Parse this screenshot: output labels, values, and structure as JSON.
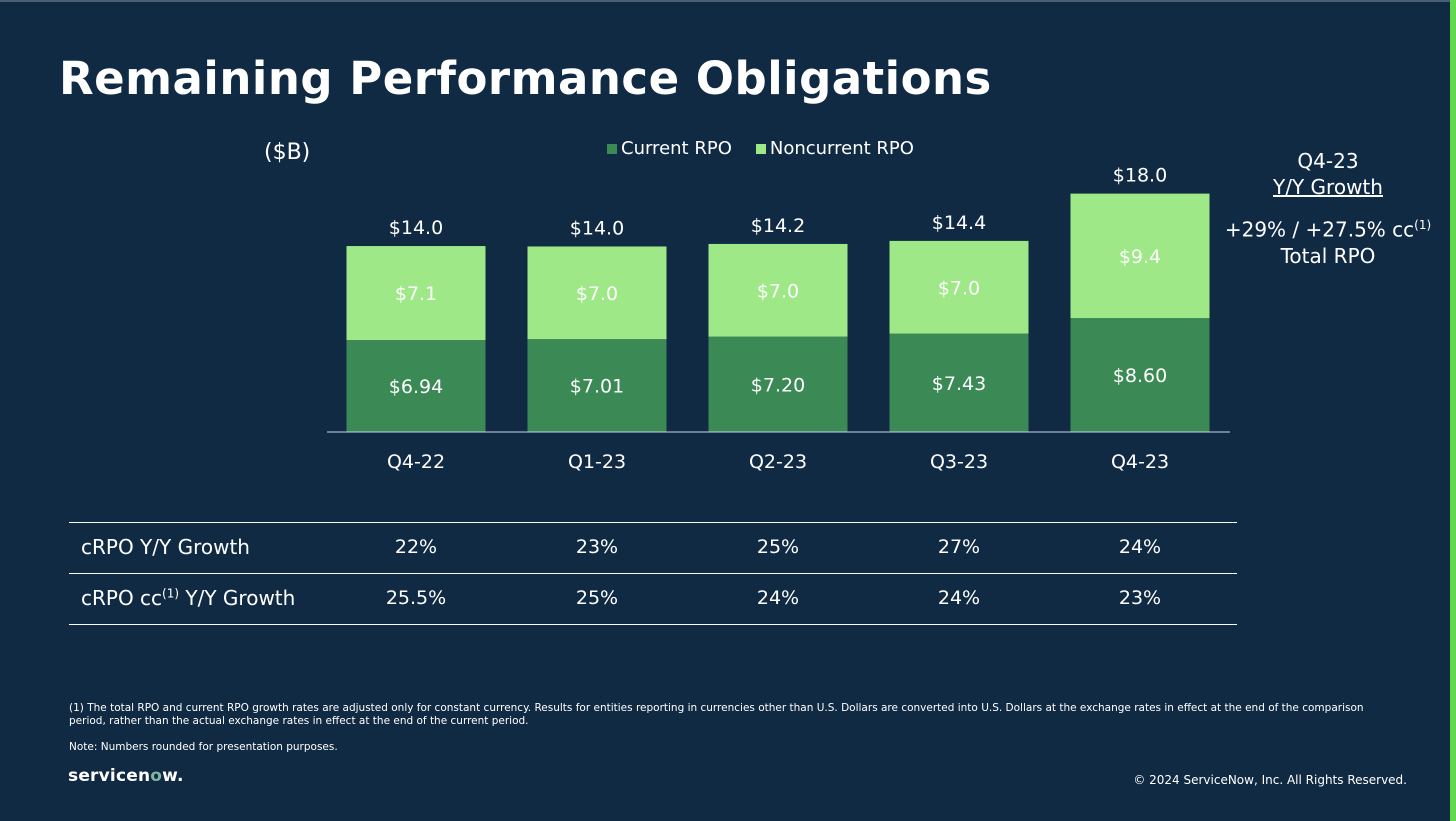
{
  "colors": {
    "background": "#102a43",
    "current": "#3b8a56",
    "noncurrent": "#9ee887",
    "accent": "#62d84e",
    "text": "#ffffff"
  },
  "slide": {
    "title": "Remaining Performance Obligations",
    "unit": "($B)"
  },
  "legend": {
    "current": "Current RPO",
    "noncurrent": "Noncurrent RPO"
  },
  "chart_data": {
    "type": "bar",
    "stacked": true,
    "categories": [
      "Q4-22",
      "Q1-23",
      "Q2-23",
      "Q3-23",
      "Q4-23"
    ],
    "series": [
      {
        "name": "Current RPO",
        "values": [
          6.94,
          7.01,
          7.2,
          7.43,
          8.6
        ],
        "labels": [
          "$6.94",
          "$7.01",
          "$7.20",
          "$7.43",
          "$8.60"
        ]
      },
      {
        "name": "Noncurrent RPO",
        "values": [
          7.1,
          7.0,
          7.0,
          7.0,
          9.4
        ],
        "labels": [
          "$7.1",
          "$7.0",
          "$7.0",
          "$7.0",
          "$9.4"
        ]
      }
    ],
    "totals": [
      14.0,
      14.0,
      14.2,
      14.4,
      18.0
    ],
    "total_labels": [
      "$14.0",
      "$14.0",
      "$14.2",
      "$14.4",
      "$18.0"
    ],
    "ylim": [
      0,
      18.5
    ],
    "legend_position": "top"
  },
  "side_note": {
    "period": "Q4-23",
    "heading": "Y/Y Growth",
    "growth": "+29% / +27.5% cc",
    "growth_sup": "(1)",
    "metric": "Total RPO"
  },
  "table": {
    "rows": [
      {
        "label": "cRPO Y/Y Growth",
        "label_sup": "",
        "label_suffix": "",
        "values": [
          "22%",
          "23%",
          "25%",
          "27%",
          "24%"
        ]
      },
      {
        "label": "cRPO cc",
        "label_sup": "(1)",
        "label_suffix": " Y/Y Growth",
        "values": [
          "25.5%",
          "25%",
          "24%",
          "24%",
          "23%"
        ]
      }
    ]
  },
  "footer": {
    "footnote": "(1) The total RPO and current RPO growth rates are adjusted only for constant currency. Results for entities reporting in currencies other than U.S. Dollars are converted into U.S. Dollars at the exchange rates in effect at the end of the comparison period, rather than the actual exchange rates in effect at the end of the current period.",
    "note": "Note: Numbers rounded for presentation purposes.",
    "logo_pre": "servicen",
    "logo_o": "o",
    "logo_post": "w.",
    "copyright": "© 2024 ServiceNow, Inc. All Rights Reserved."
  }
}
